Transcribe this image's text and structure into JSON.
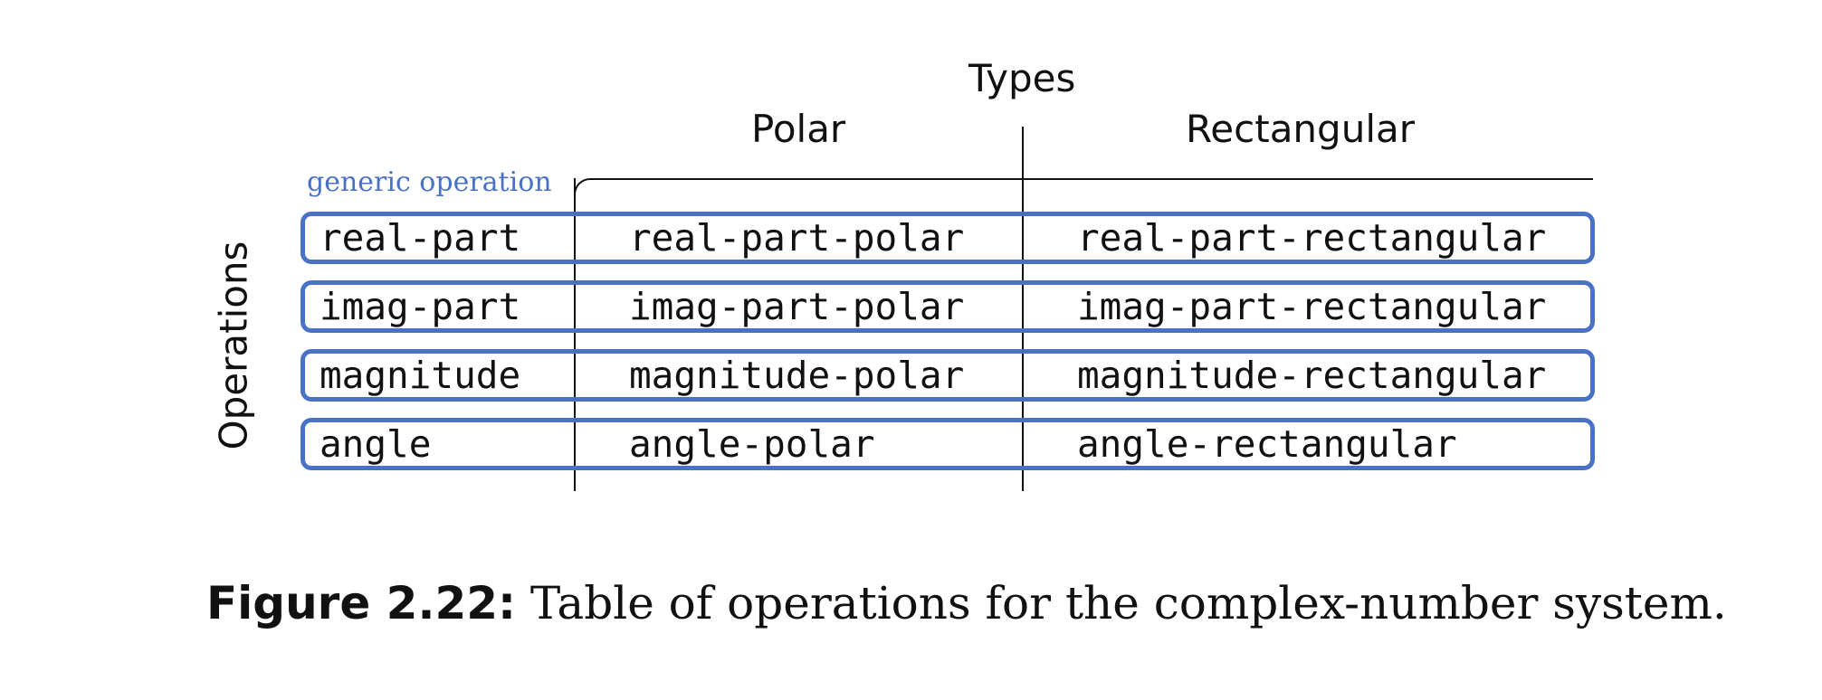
{
  "diagram": {
    "types_header": "Types",
    "columns": [
      "Polar",
      "Rectangular"
    ],
    "operations_label": "Operations",
    "generic_label": "generic operation",
    "rows": [
      {
        "op": "real-part",
        "polar": "real-part-polar",
        "rect": "real-part-rectangular"
      },
      {
        "op": "imag-part",
        "polar": "imag-part-polar",
        "rect": "imag-part-rectangular"
      },
      {
        "op": "magnitude",
        "polar": "magnitude-polar",
        "rect": "magnitude-rectangular"
      },
      {
        "op": "angle",
        "polar": "angle-polar",
        "rect": "angle-rectangular"
      }
    ],
    "colors": {
      "accent": "#4a72c4",
      "line": "#111111"
    }
  },
  "caption": {
    "label": "Figure 2.22:",
    "text": " Table of operations for the complex-number system."
  }
}
